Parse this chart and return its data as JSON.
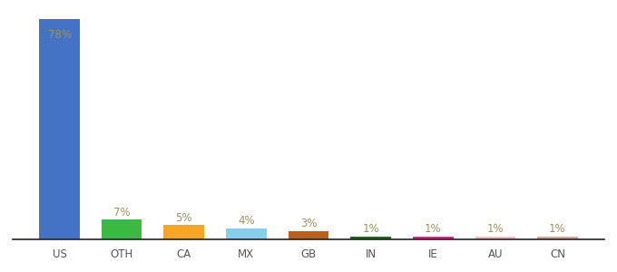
{
  "categories": [
    "US",
    "OTH",
    "CA",
    "MX",
    "GB",
    "IN",
    "IE",
    "AU",
    "CN"
  ],
  "values": [
    78,
    7,
    5,
    4,
    3,
    1,
    1,
    1,
    1
  ],
  "labels": [
    "78%",
    "7%",
    "5%",
    "4%",
    "3%",
    "1%",
    "1%",
    "1%",
    "1%"
  ],
  "bar_colors": [
    "#4472c4",
    "#3cb843",
    "#f5a623",
    "#87ceeb",
    "#b8601c",
    "#1a6b1a",
    "#ff1493",
    "#ffb6c1",
    "#d4a598"
  ],
  "ylim": [
    0,
    82
  ],
  "background_color": "#ffffff",
  "label_color": "#a09060",
  "label_fontsize": 8.5,
  "us_label_inside": true
}
